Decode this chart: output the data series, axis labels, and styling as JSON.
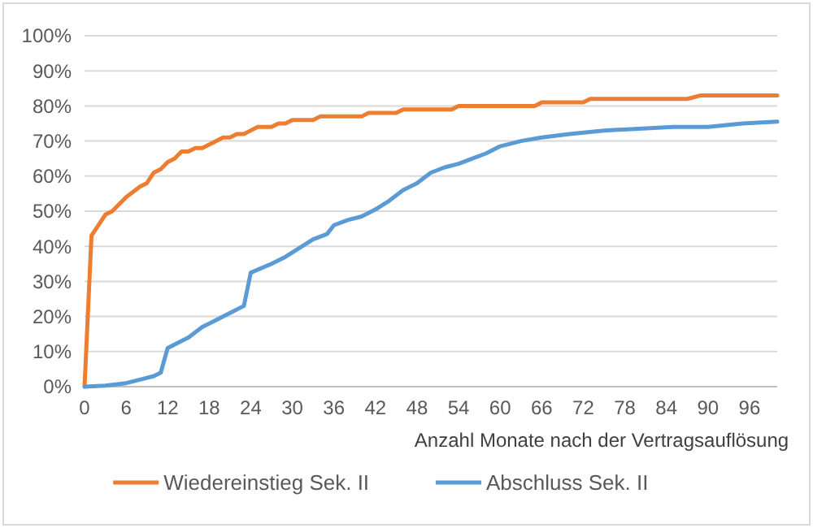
{
  "chart_data": {
    "type": "line",
    "xlabel": "Anzahl Monate nach der Vertragsauflösung",
    "xlim": [
      0,
      100
    ],
    "xticks": [
      0,
      6,
      12,
      18,
      24,
      30,
      36,
      42,
      48,
      54,
      60,
      66,
      72,
      78,
      84,
      90,
      96
    ],
    "ylim": [
      0,
      100
    ],
    "yticks": [
      {
        "value": 0,
        "label": "0%"
      },
      {
        "value": 10,
        "label": "10%"
      },
      {
        "value": 20,
        "label": "20%"
      },
      {
        "value": 30,
        "label": "30%"
      },
      {
        "value": 40,
        "label": "40%"
      },
      {
        "value": 50,
        "label": "50%"
      },
      {
        "value": 60,
        "label": "60%"
      },
      {
        "value": 70,
        "label": "70%"
      },
      {
        "value": 80,
        "label": "80%"
      },
      {
        "value": 90,
        "label": "90%"
      },
      {
        "value": 100,
        "label": "100%"
      }
    ],
    "grid": "y",
    "legend": "bottom",
    "marker": "none",
    "line_style": "solid",
    "series": [
      {
        "name": "Wiedereinstieg Sek. II",
        "color": "#ed7d31",
        "x": [
          0,
          1,
          3,
          4,
          6,
          8,
          9,
          10,
          11,
          12,
          13,
          14,
          15,
          16,
          17,
          18,
          20,
          21,
          22,
          23,
          24,
          25,
          27,
          28,
          29,
          30,
          33,
          34,
          40,
          41,
          45,
          46,
          53,
          54,
          65,
          66,
          72,
          73,
          87,
          89,
          100
        ],
        "values": [
          0,
          43,
          49,
          50,
          54,
          57,
          58,
          61,
          62,
          64,
          65,
          67,
          67,
          68,
          68,
          69,
          71,
          71,
          72,
          72,
          73,
          74,
          74,
          75,
          75,
          76,
          76,
          77,
          77,
          78,
          78,
          79,
          79,
          80,
          80,
          81,
          81,
          82,
          82,
          83,
          83
        ]
      },
      {
        "name": "Abschluss Sek. II",
        "color": "#5b9bd5",
        "x": [
          0,
          3,
          6,
          8,
          10,
          11,
          12,
          14,
          15,
          17,
          19,
          21,
          23,
          24,
          27,
          29,
          31,
          33,
          35,
          36,
          38,
          40,
          42,
          44,
          46,
          48,
          50,
          52,
          54,
          56,
          58,
          60,
          63,
          66,
          70,
          75,
          80,
          85,
          90,
          95,
          100
        ],
        "values": [
          0,
          0.3,
          1,
          2,
          3,
          4,
          11,
          13,
          14,
          17,
          19,
          21,
          23,
          32.5,
          35,
          37,
          39.5,
          42,
          43.5,
          46,
          47.5,
          48.5,
          50.5,
          53,
          56,
          58,
          61,
          62.5,
          63.5,
          65,
          66.5,
          68.5,
          70,
          71,
          72,
          73,
          73.5,
          74,
          74,
          75,
          75.5
        ]
      }
    ]
  }
}
